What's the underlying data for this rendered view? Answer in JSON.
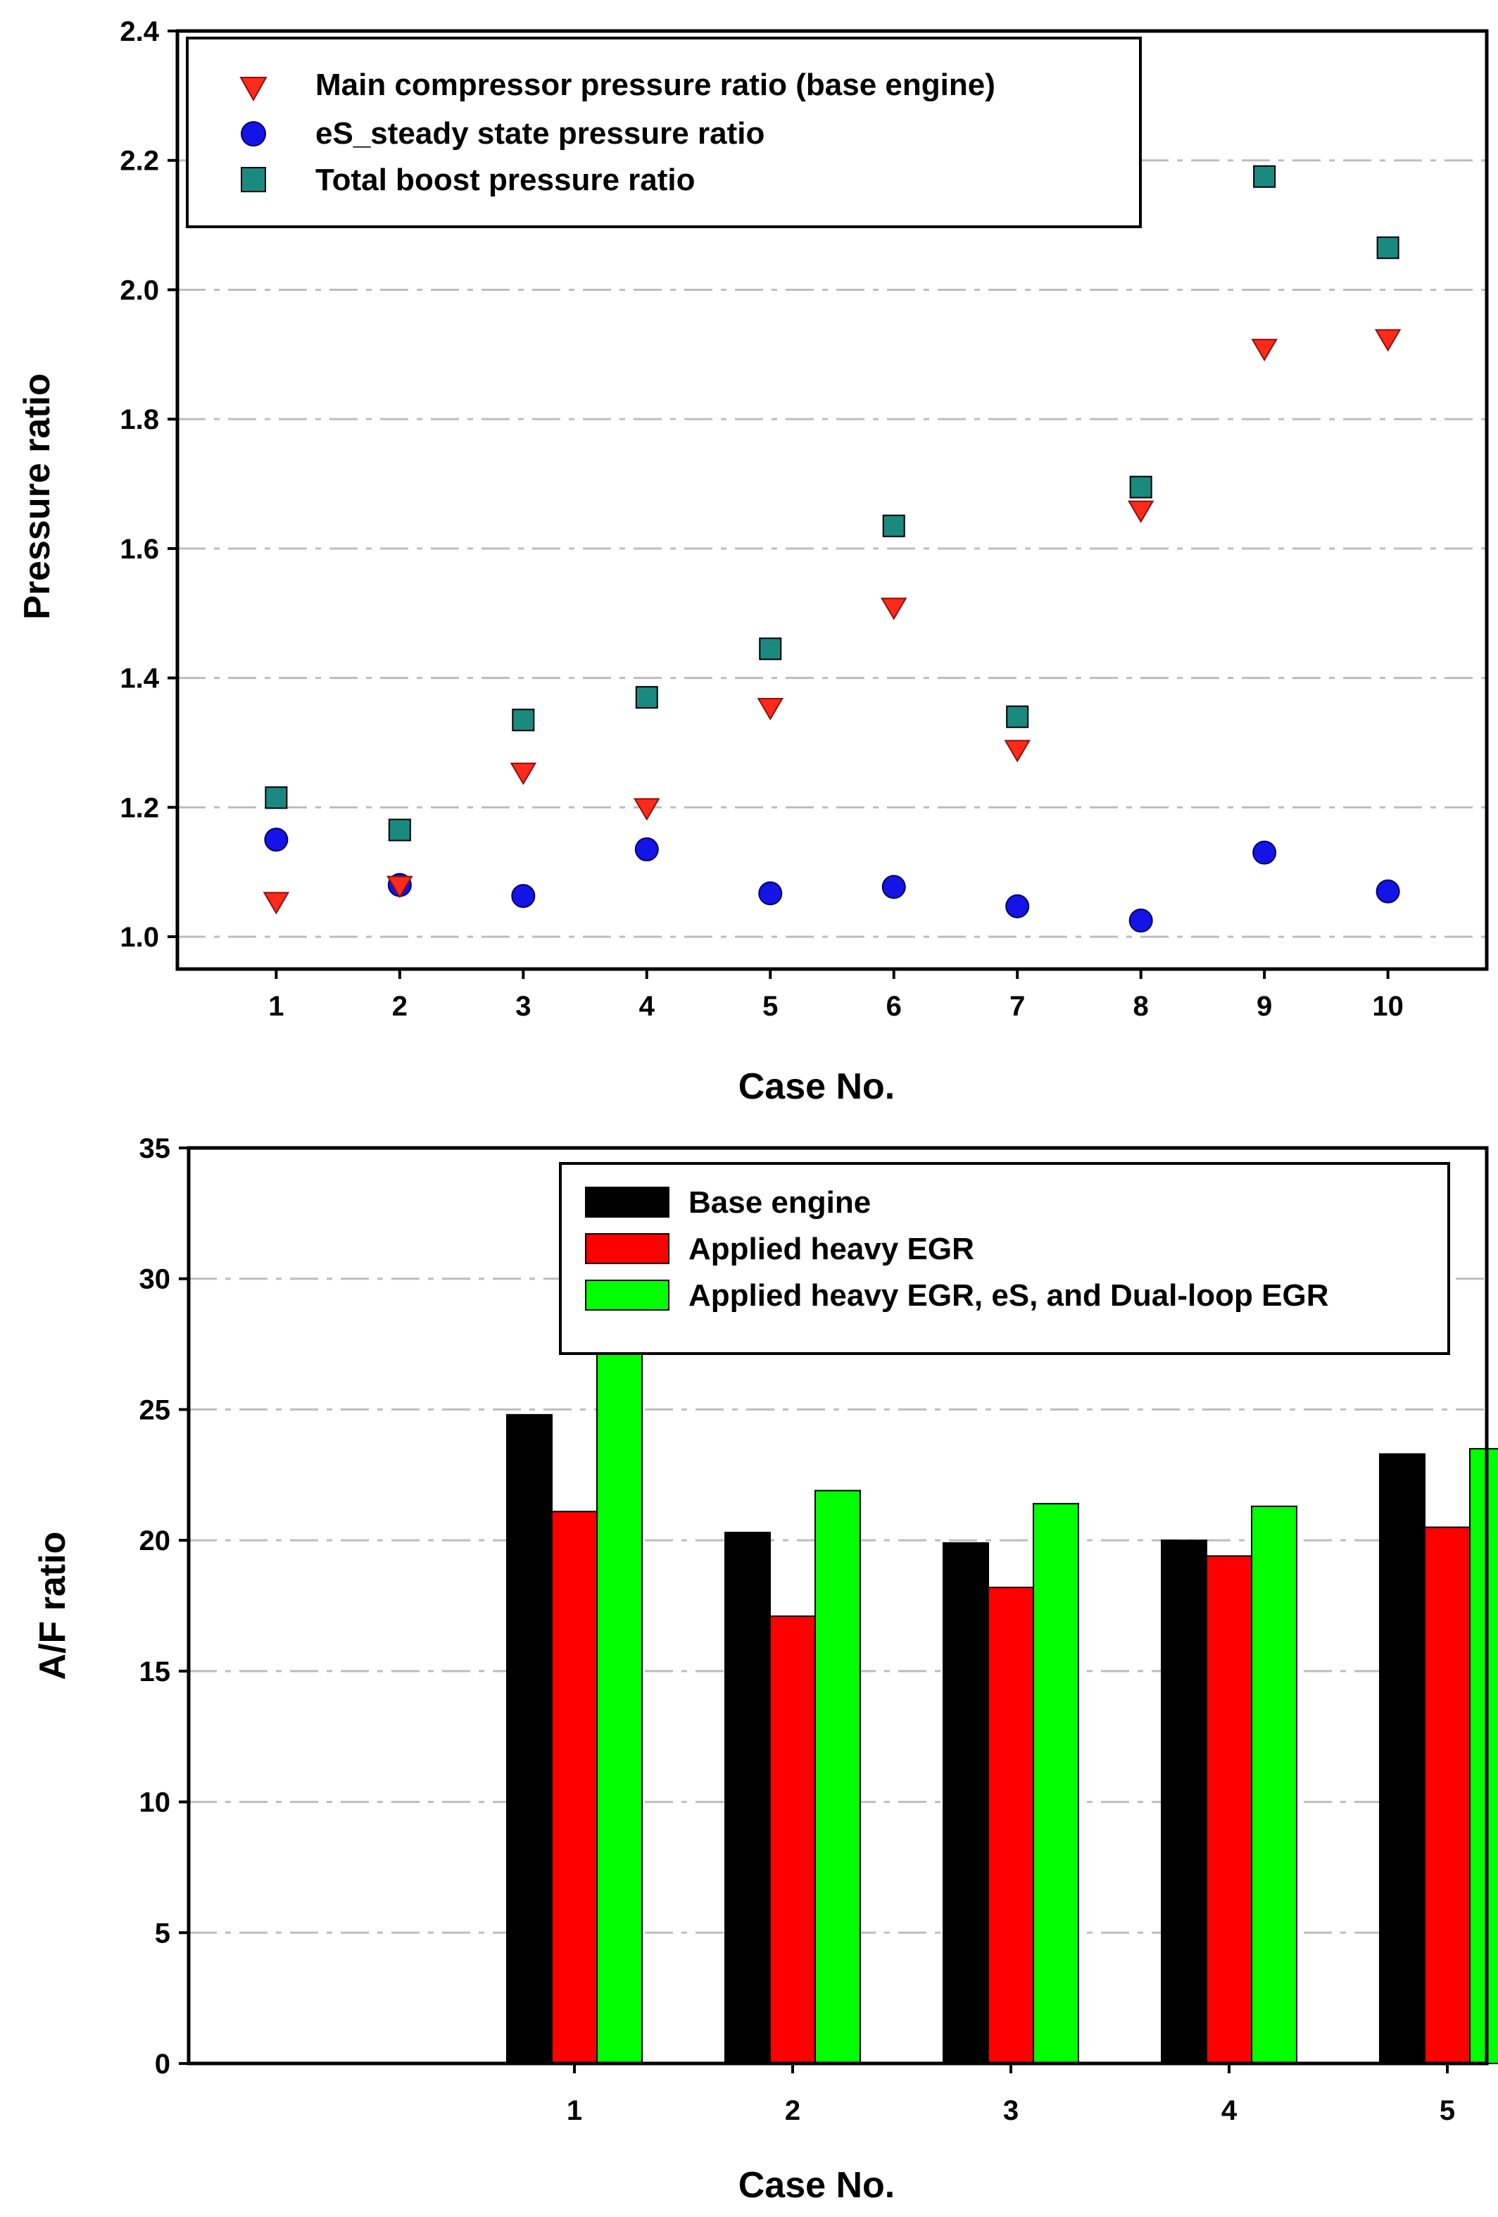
{
  "chart_data": [
    {
      "type": "scatter",
      "title": "",
      "xlabel": "Case No.",
      "ylabel": "Pressure ratio",
      "xlim": [
        0.2,
        10.8
      ],
      "ylim": [
        0.95,
        2.4
      ],
      "yticks": [
        "1.0",
        "1.2",
        "1.4",
        "1.6",
        "1.8",
        "2.0",
        "2.2",
        "2.4"
      ],
      "ytick_values": [
        1.0,
        1.2,
        1.4,
        1.6,
        1.8,
        2.0,
        2.2,
        2.4
      ],
      "xticks": [
        "1",
        "2",
        "3",
        "4",
        "5",
        "6",
        "7",
        "8",
        "9",
        "10"
      ],
      "x": [
        1,
        2,
        3,
        4,
        5,
        6,
        7,
        8,
        9,
        10
      ],
      "grid": true,
      "legend_position": "top-left",
      "series": [
        {
          "name": "Main compressor pressure ratio (base engine)",
          "marker": "triangle-down",
          "color": "#ff2a1a",
          "values": [
            1.055,
            1.08,
            1.255,
            1.2,
            1.355,
            1.51,
            1.29,
            1.66,
            1.91,
            1.925
          ]
        },
        {
          "name": "eS_steady state pressure ratio",
          "marker": "circle",
          "color": "#1414e6",
          "values": [
            1.15,
            1.08,
            1.063,
            1.135,
            1.067,
            1.077,
            1.047,
            1.025,
            1.13,
            1.07
          ]
        },
        {
          "name": "Total boost pressure ratio",
          "marker": "square",
          "color": "#1a8a80",
          "values": [
            1.215,
            1.165,
            1.335,
            1.37,
            1.445,
            1.635,
            1.34,
            1.695,
            2.175,
            2.065
          ]
        }
      ]
    },
    {
      "type": "bar",
      "title": "",
      "xlabel": "Case No.",
      "ylabel": "A/F ratio",
      "ylim": [
        0,
        35
      ],
      "yticks": [
        "0",
        "5",
        "10",
        "15",
        "20",
        "25",
        "30",
        "35"
      ],
      "ytick_values": [
        0,
        5,
        10,
        15,
        20,
        25,
        30,
        35
      ],
      "categories": [
        "1",
        "2",
        "3",
        "4",
        "5"
      ],
      "grid": true,
      "legend_position": "top-right",
      "series": [
        {
          "name": "Base engine",
          "color": "#000000",
          "values": [
            24.8,
            20.3,
            19.9,
            20.0,
            23.3
          ]
        },
        {
          "name": "Applied heavy EGR",
          "color": "#ff0000",
          "values": [
            21.1,
            17.1,
            18.2,
            19.4,
            20.5
          ]
        },
        {
          "name": "Applied heavy EGR, eS, and Dual-loop EGR",
          "color": "#00ff00",
          "values": [
            27.2,
            21.9,
            21.4,
            21.3,
            23.5
          ]
        }
      ]
    }
  ]
}
